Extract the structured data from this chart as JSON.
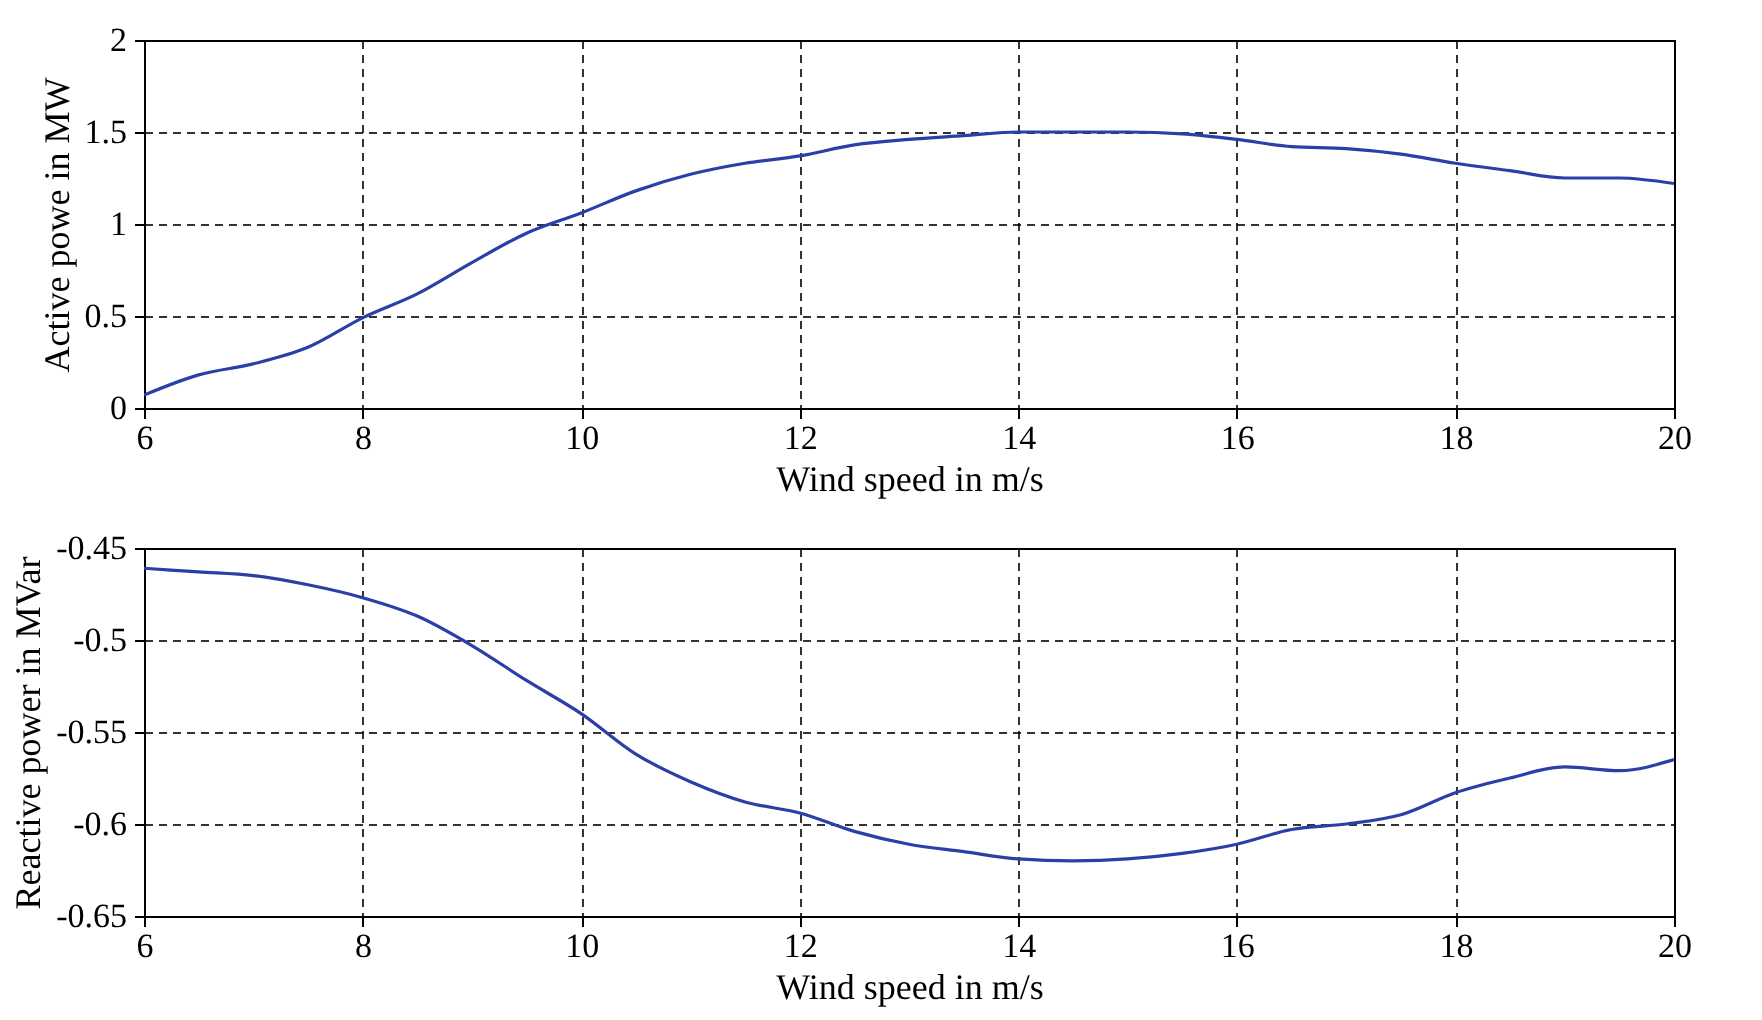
{
  "chart_data": [
    {
      "type": "line",
      "xlabel": "Wind speed in m/s",
      "ylabel": "Active powe in MW",
      "xlim": [
        6,
        20
      ],
      "xticks": [
        6,
        8,
        10,
        12,
        14,
        16,
        18,
        20
      ],
      "ylim": [
        0,
        2
      ],
      "yticks": [
        0,
        0.5,
        1,
        1.5,
        2
      ],
      "grid": true,
      "line_style": "solid",
      "x": [
        6,
        6.5,
        7,
        7.5,
        8,
        8.5,
        9,
        9.5,
        10,
        10.5,
        11,
        11.5,
        12,
        12.5,
        13,
        13.5,
        14,
        14.5,
        15,
        15.5,
        16,
        16.5,
        17,
        17.5,
        18,
        18.5,
        19,
        19.5,
        20
      ],
      "series": [
        {
          "color": "#2b3fa8",
          "values": [
            0.07,
            0.18,
            0.24,
            0.33,
            0.49,
            0.62,
            0.79,
            0.95,
            1.06,
            1.18,
            1.27,
            1.33,
            1.37,
            1.43,
            1.46,
            1.48,
            1.5,
            1.5,
            1.5,
            1.49,
            1.46,
            1.42,
            1.41,
            1.38,
            1.33,
            1.29,
            1.25,
            1.25,
            1.22
          ]
        }
      ]
    },
    {
      "type": "line",
      "xlabel": "Wind speed in m/s",
      "ylabel": "Reactive power in MVar",
      "xlim": [
        6,
        20
      ],
      "xticks": [
        6,
        8,
        10,
        12,
        14,
        16,
        18,
        20
      ],
      "ylim": [
        -0.65,
        -0.45
      ],
      "yticks": [
        -0.65,
        -0.6,
        -0.55,
        -0.5,
        -0.45
      ],
      "grid": true,
      "line_style": "solid",
      "x": [
        6,
        6.5,
        7,
        7.5,
        8,
        8.5,
        9,
        9.5,
        10,
        10.5,
        11,
        11.5,
        12,
        12.5,
        13,
        13.5,
        14,
        14.5,
        15,
        15.5,
        16,
        16.5,
        17,
        17.5,
        18,
        18.5,
        19,
        19.5,
        20
      ],
      "series": [
        {
          "color": "#2b3fa8",
          "values": [
            -0.461,
            -0.463,
            -0.465,
            -0.47,
            -0.477,
            -0.487,
            -0.503,
            -0.522,
            -0.54,
            -0.562,
            -0.577,
            -0.588,
            -0.594,
            -0.604,
            -0.611,
            -0.615,
            -0.619,
            -0.62,
            -0.619,
            -0.616,
            -0.611,
            -0.603,
            -0.6,
            -0.595,
            -0.583,
            -0.575,
            -0.569,
            -0.571,
            -0.565
          ]
        }
      ]
    }
  ]
}
